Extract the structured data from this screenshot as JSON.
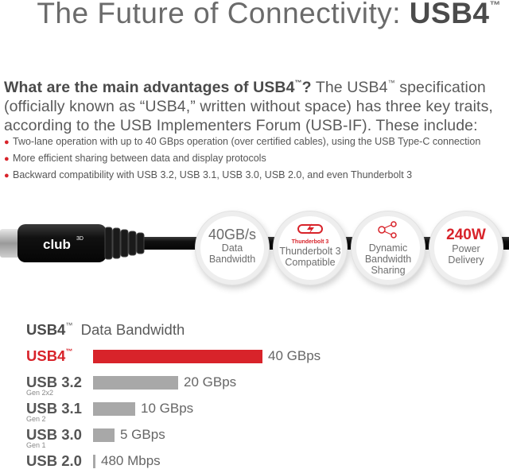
{
  "header": {
    "title_prefix": "The Future of Connectivity: ",
    "title_brand": "USB4",
    "title_tm": "™"
  },
  "intro": {
    "question_lead": "What are the main advantages of USB4",
    "question_tm": "™",
    "question_mark": "?",
    "text_a": " The USB4",
    "text_tm": "™",
    "text_b": " specification (officially known as “USB4,” written without space) has three key traits, according to the USB Implementers Forum (USB-IF). These include:"
  },
  "bullets": [
    "Two-lane operation with up to 40 GBps operation (over certified cables), using the USB Type-C connection",
    "More efficient sharing between data and display protocols",
    "Backward compatibility with USB 3.2, USB 3.1, USB 3.0, USB 2.0, and even Thunderbolt 3"
  ],
  "cable": {
    "logo_text": "club",
    "logo_sup": "3D"
  },
  "features": {
    "bandwidth": {
      "value": "40GB/s",
      "line1": "Data",
      "line2": "Bandwidth"
    },
    "thunderbolt": {
      "badge": "Thunderbolt 3",
      "line1": "Thunderbolt 3",
      "line2": "Compatible"
    },
    "sharing": {
      "line1": "Dynamic",
      "line2": "Bandwidth",
      "line3": "Sharing"
    },
    "power": {
      "value": "240W",
      "line1": "Power",
      "line2": "Delivery"
    }
  },
  "chart_data": {
    "type": "bar",
    "orientation": "horizontal",
    "title_brand": "USB4",
    "title_tm": "™",
    "title_rest": "  Data Bandwidth",
    "categories": [
      "USB4™",
      "USB 3.2",
      "USB 3.1",
      "USB 3.0",
      "USB 2.0"
    ],
    "rows": [
      {
        "name": "USB4",
        "tm": "™",
        "sub": "",
        "value": 40,
        "label": "40 GBps",
        "highlight": true
      },
      {
        "name": "USB 3.2",
        "tm": "",
        "sub": "Gen 2x2",
        "value": 20,
        "label": "20 GBps",
        "highlight": false
      },
      {
        "name": "USB 3.1",
        "tm": "",
        "sub": "Gen 2",
        "value": 10,
        "label": "10 GBps",
        "highlight": false
      },
      {
        "name": "USB 3.0",
        "tm": "",
        "sub": "Gen 1",
        "value": 5,
        "label": "5 GBps",
        "highlight": false
      },
      {
        "name": "USB 2.0",
        "tm": "",
        "sub": "",
        "value": 0.48,
        "label": "480 Mbps",
        "highlight": false
      }
    ],
    "units": "GBps",
    "xlim": [
      0,
      40
    ],
    "colors": {
      "highlight": "#d8232a",
      "default": "#a8a8a8"
    }
  }
}
